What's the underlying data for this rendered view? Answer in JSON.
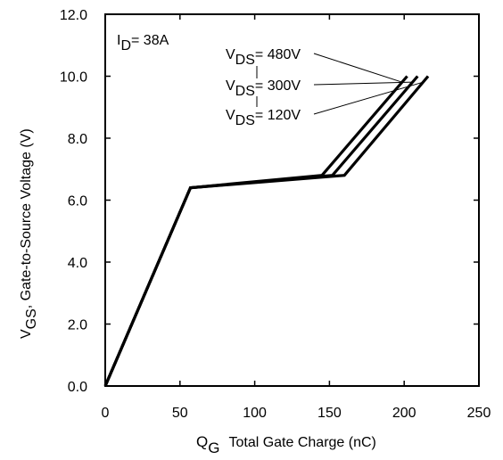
{
  "chart_data": {
    "type": "line",
    "title": "",
    "annotation": {
      "prefix": "I",
      "sub": "D",
      "rest": "= 38A"
    },
    "xlabel": {
      "main": "Q",
      "sub": "G",
      "rest": "Total Gate Charge (nC)"
    },
    "ylabel": {
      "main": "V",
      "sub": "GS",
      "rest": ", Gate-to-Source Voltage (V)"
    },
    "xlim": [
      0,
      250
    ],
    "ylim": [
      0,
      12
    ],
    "xticks": [
      "0",
      "50",
      "100",
      "150",
      "200",
      "250"
    ],
    "yticks": [
      "0.0",
      "2.0",
      "4.0",
      "6.0",
      "8.0",
      "10.0",
      "12.0"
    ],
    "grid": false,
    "series": [
      {
        "name": "VDS= 120V",
        "label_prefix": "V",
        "label_sub": "DS",
        "label_rest": "= 120V",
        "x": [
          0,
          57,
          160,
          216
        ],
        "y": [
          0,
          6.4,
          6.8,
          10.0
        ]
      },
      {
        "name": "VDS= 300V",
        "label_prefix": "V",
        "label_sub": "DS",
        "label_rest": "= 300V",
        "x": [
          0,
          57,
          152,
          209
        ],
        "y": [
          0,
          6.4,
          6.8,
          10.0
        ]
      },
      {
        "name": "VDS= 480V",
        "label_prefix": "V",
        "label_sub": "DS",
        "label_rest": "= 480V",
        "x": [
          0,
          57,
          145,
          202
        ],
        "y": [
          0,
          6.4,
          6.8,
          10.0
        ]
      }
    ]
  }
}
